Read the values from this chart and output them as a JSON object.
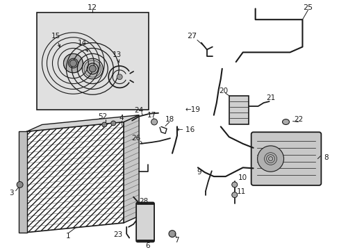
{
  "bg_color": "#ffffff",
  "line_color": "#1a1a1a",
  "gray_fill": "#d0d0d0",
  "light_gray": "#e8e8e8",
  "inset_fill": "#e0e0e0",
  "figsize": [
    4.89,
    3.6
  ],
  "dpi": 100
}
